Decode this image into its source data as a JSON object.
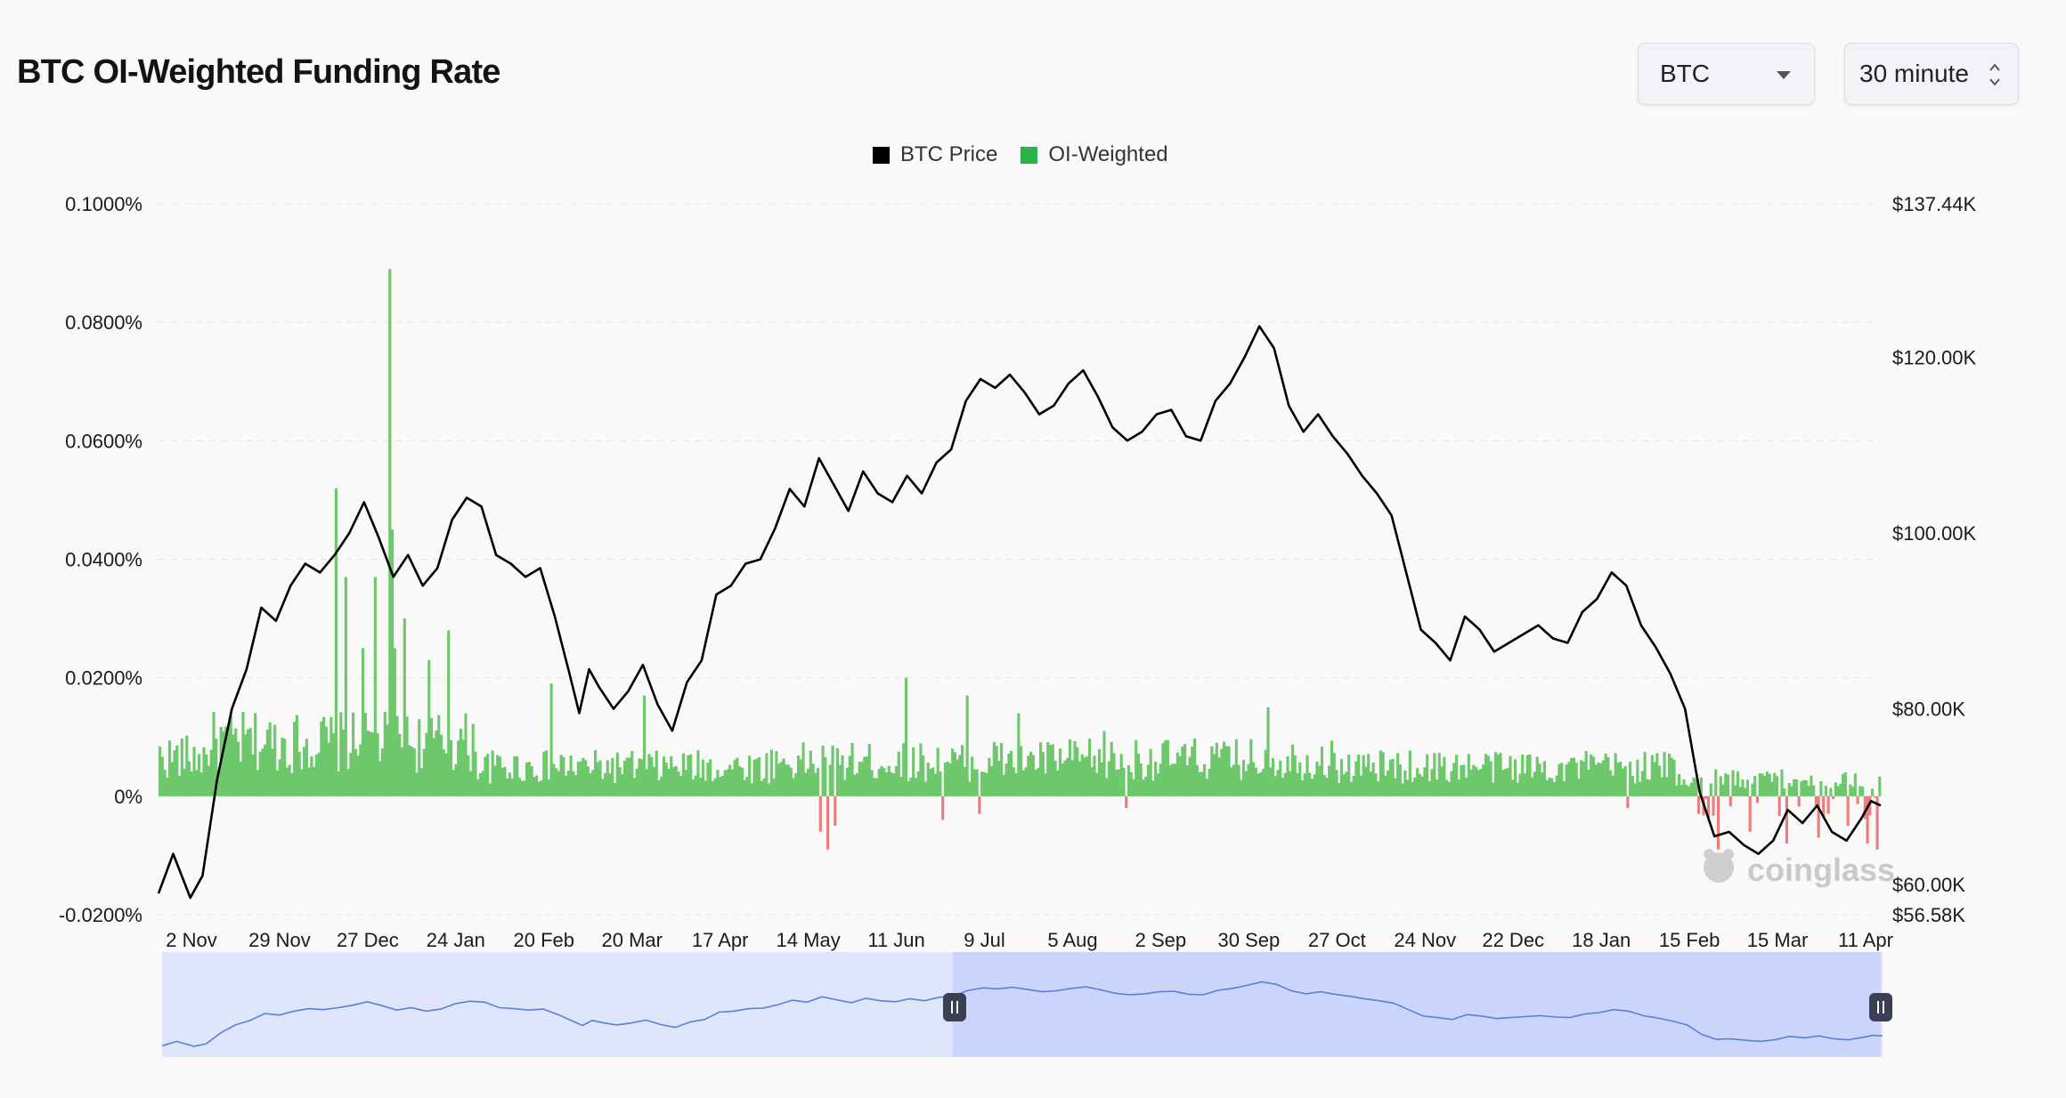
{
  "header": {
    "title": "BTC OI-Weighted Funding Rate",
    "asset": "BTC",
    "interval": "30 minute"
  },
  "legend": [
    {
      "label": "BTC Price",
      "color": "#000000"
    },
    {
      "label": "OI-Weighted",
      "color": "#2bb24c"
    }
  ],
  "watermark": "coinglass",
  "colors": {
    "positive_funding": "#6cc86a",
    "negative_funding": "#ec7d7d",
    "price_line": "#000000",
    "navigator_line": "#5b7fd6",
    "navigator_fill": "#dfe5fb",
    "navigator_selected": "#c9d5fb"
  },
  "chart_data": {
    "type": "line",
    "title": "BTC OI-Weighted Funding Rate",
    "x_ticks": [
      "2 Nov",
      "29 Nov",
      "27 Dec",
      "24 Jan",
      "20 Feb",
      "20 Mar",
      "17 Apr",
      "14 May",
      "11 Jun",
      "9 Jul",
      "5 Aug",
      "2 Sep",
      "30 Sep",
      "27 Oct",
      "24 Nov",
      "22 Dec",
      "18 Jan",
      "15 Feb",
      "15 Mar",
      "11 Apr"
    ],
    "y_left": {
      "ticks": [
        "0.1000%",
        "0.0800%",
        "0.0600%",
        "0.0400%",
        "0.0200%",
        "0%",
        "-0.0200%"
      ],
      "range": [
        -0.02,
        0.1
      ],
      "unit": "%"
    },
    "y_right": {
      "ticks": [
        "$137.44K",
        "$120.00K",
        "$100.00K",
        "$80.00K",
        "$60.00K",
        "$56.58K"
      ],
      "range": [
        56.58,
        137.44
      ],
      "unit": "K USD"
    },
    "series": [
      {
        "name": "BTC Price",
        "axis": "right",
        "points": [
          [
            0,
            59.0
          ],
          [
            6,
            63.5
          ],
          [
            13,
            58.5
          ],
          [
            18,
            61.0
          ],
          [
            24,
            72.0
          ],
          [
            30,
            80.0
          ],
          [
            36,
            84.5
          ],
          [
            42,
            91.5
          ],
          [
            48,
            90.0
          ],
          [
            54,
            94.0
          ],
          [
            60,
            96.5
          ],
          [
            66,
            95.5
          ],
          [
            72,
            97.5
          ],
          [
            78,
            100.0
          ],
          [
            84,
            103.5
          ],
          [
            90,
            99.5
          ],
          [
            96,
            95.0
          ],
          [
            102,
            97.5
          ],
          [
            108,
            94.0
          ],
          [
            114,
            96.0
          ],
          [
            120,
            101.5
          ],
          [
            126,
            104.0
          ],
          [
            132,
            103.0
          ],
          [
            138,
            97.5
          ],
          [
            144,
            96.5
          ],
          [
            150,
            95.0
          ],
          [
            156,
            96.0
          ],
          [
            162,
            90.5
          ],
          [
            168,
            84.0
          ],
          [
            172,
            79.5
          ],
          [
            176,
            84.5
          ],
          [
            180,
            82.5
          ],
          [
            186,
            80.0
          ],
          [
            192,
            82.0
          ],
          [
            198,
            85.0
          ],
          [
            204,
            80.5
          ],
          [
            210,
            77.5
          ],
          [
            216,
            83.0
          ],
          [
            222,
            85.5
          ],
          [
            228,
            93.0
          ],
          [
            234,
            94.0
          ],
          [
            240,
            96.5
          ],
          [
            246,
            97.0
          ],
          [
            252,
            100.5
          ],
          [
            258,
            105.0
          ],
          [
            264,
            103.0
          ],
          [
            270,
            108.5
          ],
          [
            276,
            105.5
          ],
          [
            282,
            102.5
          ],
          [
            288,
            107.0
          ],
          [
            294,
            104.5
          ],
          [
            300,
            103.5
          ],
          [
            306,
            106.5
          ],
          [
            312,
            104.5
          ],
          [
            318,
            108.0
          ],
          [
            324,
            109.5
          ],
          [
            330,
            115.0
          ],
          [
            336,
            117.5
          ],
          [
            342,
            116.5
          ],
          [
            348,
            118.0
          ],
          [
            354,
            116.0
          ],
          [
            360,
            113.5
          ],
          [
            366,
            114.5
          ],
          [
            372,
            117.0
          ],
          [
            378,
            118.5
          ],
          [
            384,
            115.5
          ],
          [
            390,
            112.0
          ],
          [
            396,
            110.5
          ],
          [
            402,
            111.5
          ],
          [
            408,
            113.5
          ],
          [
            414,
            114.0
          ],
          [
            420,
            111.0
          ],
          [
            426,
            110.5
          ],
          [
            432,
            115.0
          ],
          [
            438,
            117.0
          ],
          [
            444,
            120.0
          ],
          [
            450,
            123.5
          ],
          [
            456,
            121.0
          ],
          [
            462,
            114.5
          ],
          [
            468,
            111.5
          ],
          [
            474,
            113.5
          ],
          [
            480,
            111.0
          ],
          [
            486,
            109.0
          ],
          [
            492,
            106.5
          ],
          [
            498,
            104.5
          ],
          [
            504,
            102.0
          ],
          [
            510,
            95.5
          ],
          [
            516,
            89.0
          ],
          [
            522,
            87.5
          ],
          [
            528,
            85.5
          ],
          [
            534,
            90.5
          ],
          [
            540,
            89.0
          ],
          [
            546,
            86.5
          ],
          [
            552,
            87.5
          ],
          [
            558,
            88.5
          ],
          [
            564,
            89.5
          ],
          [
            570,
            88.0
          ],
          [
            576,
            87.5
          ],
          [
            582,
            91.0
          ],
          [
            588,
            92.5
          ],
          [
            594,
            95.5
          ],
          [
            600,
            94.0
          ],
          [
            606,
            89.5
          ],
          [
            612,
            87.0
          ],
          [
            618,
            84.0
          ],
          [
            624,
            80.0
          ],
          [
            630,
            70.5
          ],
          [
            636,
            65.5
          ],
          [
            642,
            66.0
          ],
          [
            648,
            64.5
          ],
          [
            654,
            63.5
          ],
          [
            660,
            65.0
          ],
          [
            666,
            68.5
          ],
          [
            672,
            67.0
          ],
          [
            678,
            69.0
          ],
          [
            684,
            66.0
          ],
          [
            690,
            65.0
          ],
          [
            696,
            67.5
          ],
          [
            700,
            69.5
          ],
          [
            704,
            69.0
          ]
        ]
      },
      {
        "name": "OI-Weighted",
        "axis": "left",
        "summary": "Dense 30-minute funding-rate bars, mostly positive around 0.005%–0.01%, with spikes up to ~0.089% in Nov and negative dips to about -0.009% in Apr, Jun and Feb–Apr."
      }
    ]
  },
  "navigator": {
    "range_start": "9 Jul",
    "range_end": "11 Apr"
  }
}
